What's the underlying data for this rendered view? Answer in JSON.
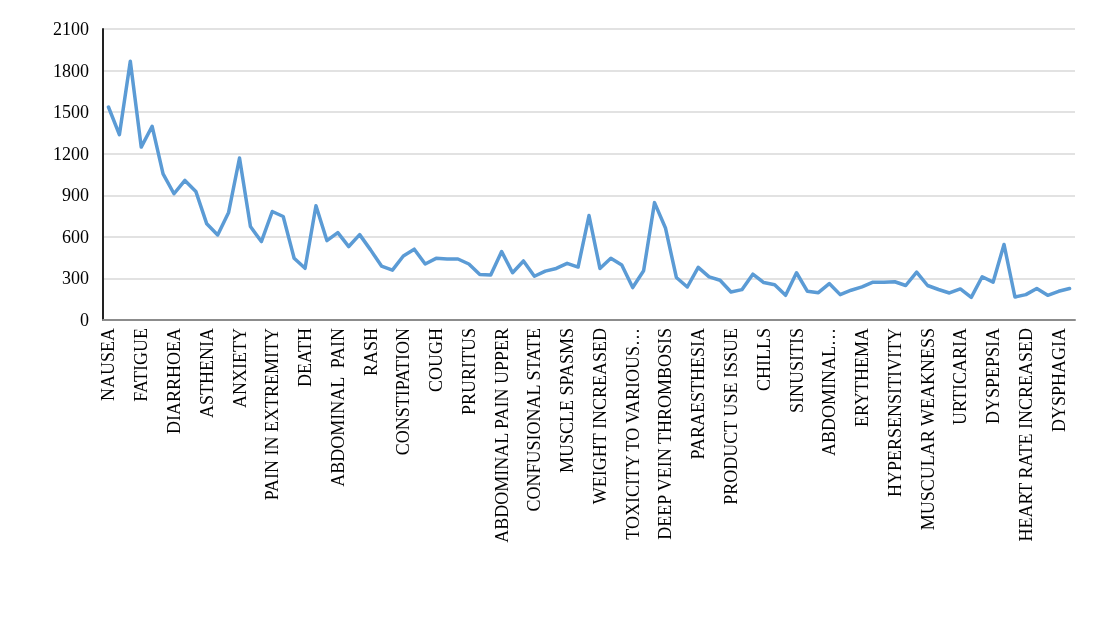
{
  "chart_data": {
    "type": "line",
    "categories": [
      "NAUSEA",
      null,
      null,
      "FATIGUE",
      null,
      null,
      "DIARRHOEA",
      null,
      null,
      "ASTHENIA",
      null,
      null,
      "ANXIETY",
      null,
      null,
      "PAIN IN EXTREMITY",
      null,
      null,
      "DEATH",
      null,
      null,
      "ABDOMINAL  PAIN",
      null,
      null,
      "RASH",
      null,
      null,
      "CONSTIPATION",
      null,
      null,
      "COUGH",
      null,
      null,
      "PRURITUS",
      null,
      null,
      "ABDOMINAL PAIN UPPER",
      null,
      null,
      "CONFUSIONAL STATE",
      null,
      null,
      "MUSCLE SPASMS",
      null,
      null,
      "WEIGHT INCREASED",
      null,
      null,
      "TOXICITY TO VARIOUS…",
      null,
      null,
      "DEEP VEIN THROMBOSIS",
      null,
      null,
      "PARAESTHESIA",
      null,
      null,
      "PRODUCT USE ISSUE",
      null,
      null,
      "CHILLS",
      null,
      null,
      "SINUSITIS",
      null,
      null,
      "ABDOMINAL…",
      null,
      null,
      "ERYTHEMA",
      null,
      null,
      "HYPERSENSITIVITY",
      null,
      null,
      "MUSCULAR WEAKNESS",
      null,
      null,
      "URTICARIA",
      null,
      null,
      "DYSPEPSIA",
      null,
      null,
      "HEART RATE INCREASED",
      null,
      null,
      "DYSPHAGIA",
      null
    ],
    "series": [
      {
        "color": "#5b9bd5",
        "values": [
          1537,
          1337,
          1867,
          1248,
          1398,
          1055,
          911,
          1007,
          928,
          694,
          614,
          776,
          1169,
          675,
          566,
          783,
          747,
          446,
          373,
          824,
          573,
          631,
          530,
          616,
          506,
          389,
          360,
          462,
          511,
          404,
          445,
          440,
          440,
          404,
          328,
          324,
          494,
          341,
          426,
          316,
          353,
          372,
          409,
          382,
          754,
          372,
          445,
          397,
          234,
          355,
          847,
          664,
          307,
          238,
          380,
          311,
          287,
          202,
          219,
          331,
          270,
          255,
          178,
          341,
          207,
          197,
          263,
          183,
          215,
          239,
          273,
          273,
          276,
          249,
          346,
          249,
          220,
          195,
          224,
          163,
          312,
          273,
          545,
          166,
          183,
          227,
          178,
          207,
          227
        ]
      }
    ],
    "ylim": [
      0,
      2100
    ],
    "yticks": [
      0,
      300,
      600,
      900,
      1200,
      1500,
      1800,
      2100
    ],
    "grid": "y",
    "marker": "none",
    "line_style": "solid"
  }
}
